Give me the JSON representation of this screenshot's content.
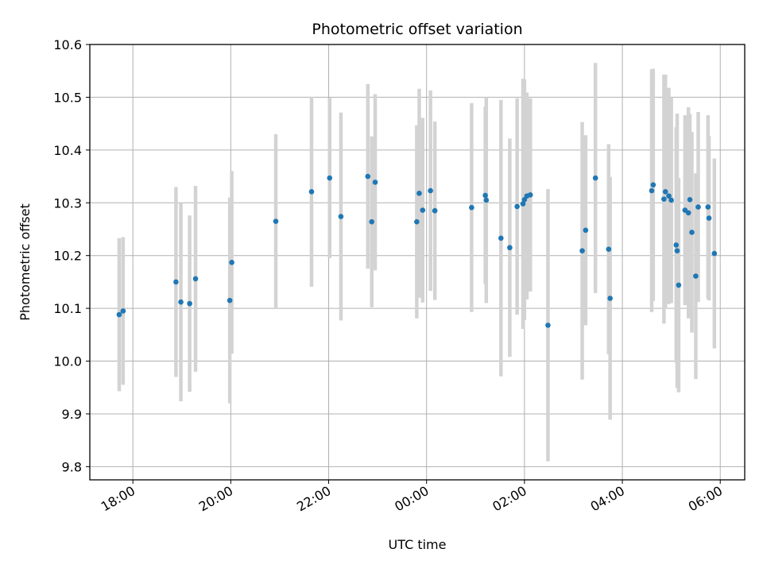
{
  "chart_data": {
    "type": "scatter",
    "title": "Photometric offset variation",
    "xlabel": "UTC time",
    "ylabel": "Photometric offset",
    "x_tick_labels": [
      "18:00",
      "20:00",
      "22:00",
      "00:00",
      "02:00",
      "04:00",
      "06:00"
    ],
    "y_tick_labels": [
      "9.8",
      "9.9",
      "10.0",
      "10.1",
      "10.2",
      "10.3",
      "10.4",
      "10.5",
      "10.6"
    ],
    "x_ticks_hours": [
      18,
      20,
      22,
      24,
      26,
      28,
      30
    ],
    "xlim_hours": [
      17.12,
      30.5
    ],
    "ylim": [
      9.775,
      10.6
    ],
    "grid": true,
    "series": [
      {
        "marker_color": "#1f77b4",
        "errorbar_color": "#d3d3d3",
        "x_hours": [
          17.72,
          17.8,
          18.88,
          18.98,
          19.16,
          19.28,
          19.98,
          20.02,
          20.92,
          21.65,
          22.02,
          22.25,
          22.8,
          22.88,
          22.95,
          23.8,
          23.85,
          23.92,
          24.08,
          24.17,
          24.92,
          25.2,
          25.22,
          25.52,
          25.7,
          25.85,
          25.97,
          26.0,
          26.05,
          26.12,
          26.48,
          27.18,
          27.25,
          27.45,
          27.72,
          27.75,
          28.6,
          28.63,
          28.85,
          28.88,
          28.95,
          29.0,
          29.1,
          29.12,
          29.15,
          29.28,
          29.35,
          29.38,
          29.42,
          29.5,
          29.55,
          29.75,
          29.77,
          29.88
        ],
        "y": [
          10.088,
          10.095,
          10.15,
          10.112,
          10.109,
          10.156,
          10.115,
          10.187,
          10.265,
          10.321,
          10.347,
          10.274,
          10.35,
          10.264,
          10.339,
          10.264,
          10.318,
          10.286,
          10.323,
          10.285,
          10.291,
          10.314,
          10.305,
          10.233,
          10.215,
          10.293,
          10.298,
          10.306,
          10.313,
          10.315,
          10.068,
          10.209,
          10.248,
          10.347,
          10.212,
          10.119,
          10.323,
          10.334,
          10.307,
          10.321,
          10.313,
          10.305,
          10.22,
          10.209,
          10.144,
          10.286,
          10.281,
          10.306,
          10.244,
          10.161,
          10.292,
          10.292,
          10.271,
          10.204
        ],
        "y_err": [
          0.145,
          0.14,
          0.18,
          0.188,
          0.167,
          0.176,
          0.195,
          0.173,
          0.165,
          0.18,
          0.152,
          0.197,
          0.175,
          0.162,
          0.167,
          0.183,
          0.198,
          0.175,
          0.19,
          0.169,
          0.198,
          0.168,
          0.195,
          0.262,
          0.207,
          0.205,
          0.237,
          0.228,
          0.196,
          0.183,
          0.258,
          0.244,
          0.18,
          0.218,
          0.199,
          0.23,
          0.23,
          0.22,
          0.236,
          0.222,
          0.205,
          0.195,
          0.223,
          0.26,
          0.203,
          0.18,
          0.2,
          0.162,
          0.19,
          0.195,
          0.18,
          0.174,
          0.156,
          0.18
        ]
      }
    ]
  }
}
